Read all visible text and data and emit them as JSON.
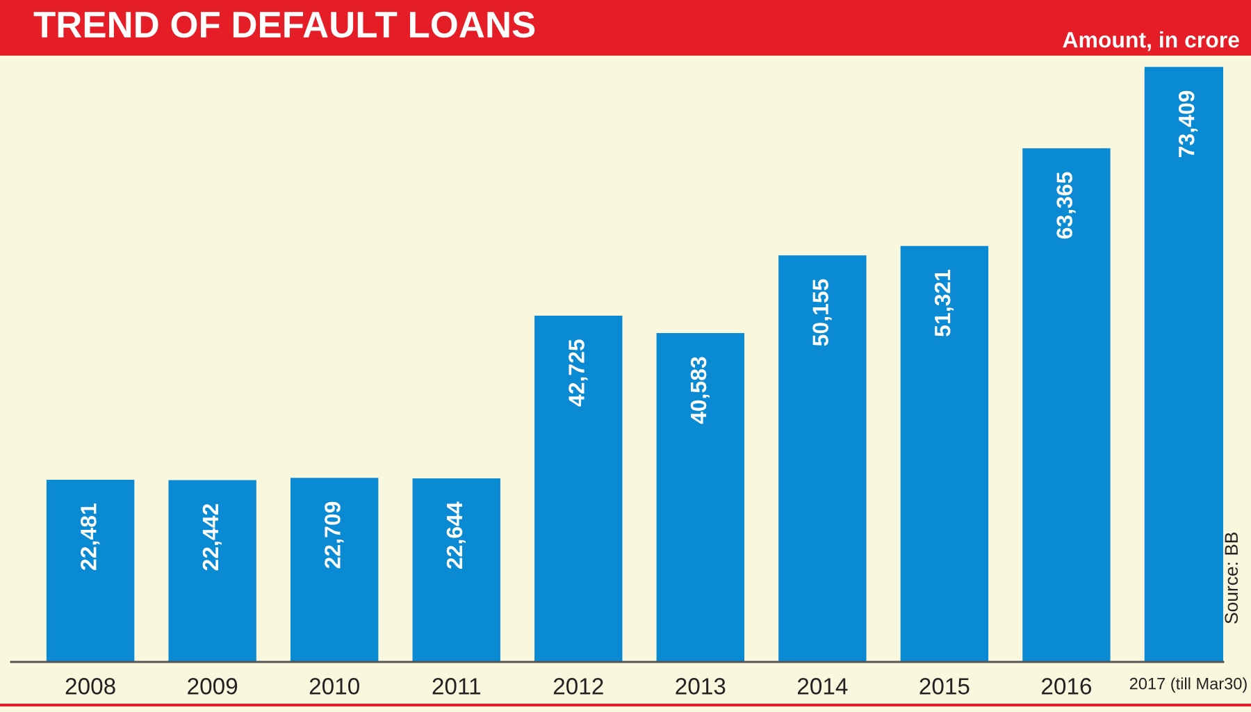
{
  "chart_data": {
    "type": "bar",
    "title": "TREND OF DEFAULT LOANS",
    "subtitle": "Amount, in crore",
    "categories": [
      "2008",
      "2009",
      "2010",
      "2011",
      "2012",
      "2013",
      "2014",
      "2015",
      "2016",
      "2017 (till Mar30)"
    ],
    "values": [
      22481,
      22442,
      22709,
      22644,
      42725,
      40583,
      50155,
      51321,
      63365,
      73409
    ],
    "value_labels": [
      "22,481",
      "22,442",
      "22,709",
      "22,644",
      "42,725",
      "40,583",
      "50,155",
      "51,321",
      "63,365",
      "73,409"
    ],
    "color": "#0b8ad4",
    "tick_labels": "x",
    "annotations": [
      "Source: BB"
    ]
  }
}
